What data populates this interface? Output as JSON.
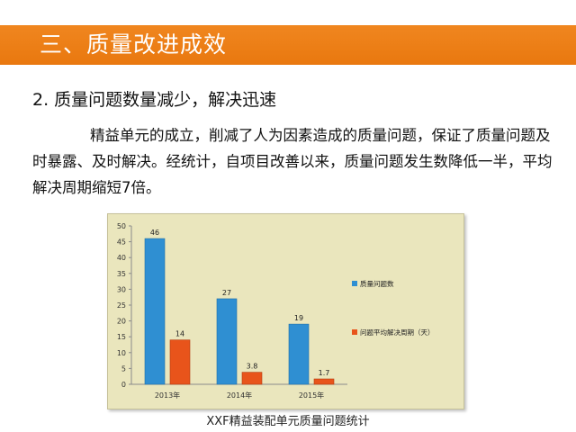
{
  "header": {
    "title": "三、质量改进成效"
  },
  "section": {
    "subtitle": "2. 质量问题数量减少，解决迅速",
    "paragraph": "精益单元的成立，削减了人为因素造成的质量问题，保证了质量问题及时暴露、及时解决。经统计，自项目改善以来，质量问题发生数降低一半，平均解决周期缩短7倍。"
  },
  "caption": "XXF精益装配单元质量问题统计",
  "colors": {
    "title_bar": "#ec7d14",
    "series_1": "#2f8fd2",
    "series_2": "#e8541b",
    "chart_bg": "#eae6bd"
  },
  "chart_data": {
    "type": "bar",
    "categories": [
      "2013年",
      "2014年",
      "2015年"
    ],
    "series": [
      {
        "name": "质量问题数",
        "values": [
          46,
          27,
          19
        ]
      },
      {
        "name": "问题平均解决周期（天）",
        "values": [
          14,
          3.8,
          1.7
        ]
      }
    ],
    "ylim": [
      0,
      50
    ],
    "yticks": [
      "0",
      "5",
      "10",
      "15",
      "20",
      "25",
      "30",
      "35",
      "40",
      "45",
      "50"
    ],
    "data_labels": [
      [
        "46",
        "27",
        "19"
      ],
      [
        "14",
        "3.8",
        "1.7"
      ]
    ],
    "grid": false,
    "legend": "right"
  }
}
